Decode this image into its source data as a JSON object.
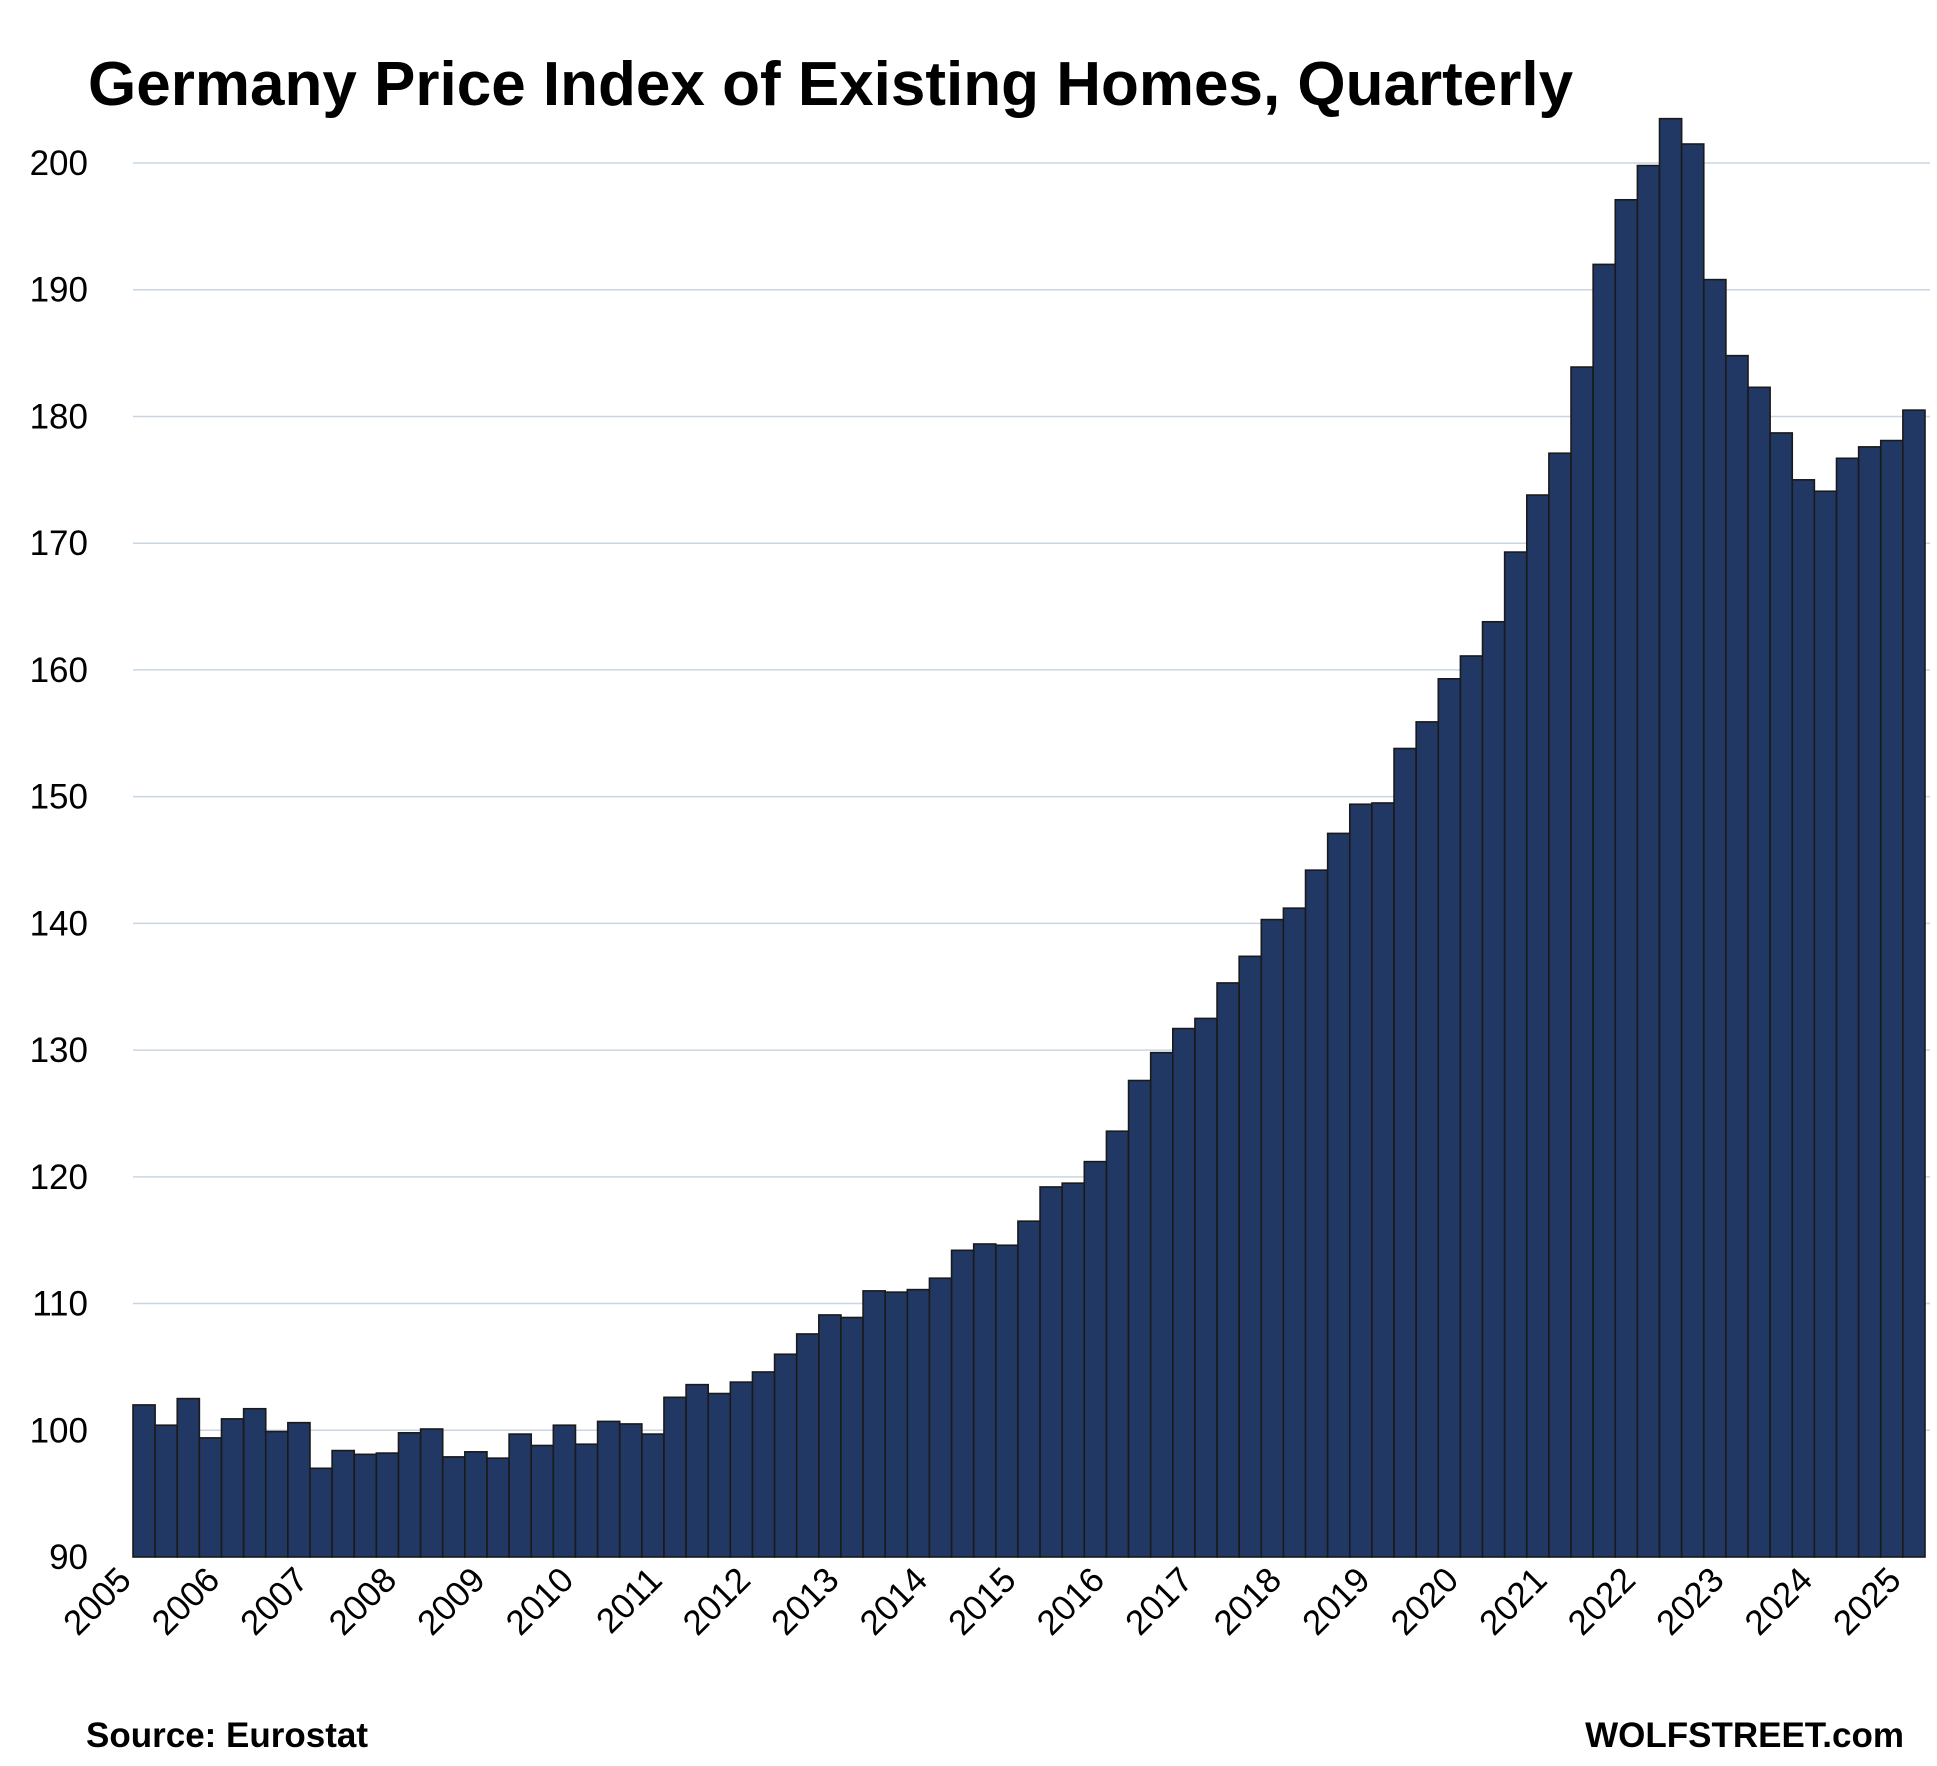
{
  "chart_data": {
    "type": "bar",
    "title": "Germany Price Index of Existing Homes, Quarterly",
    "xlabel": "",
    "ylabel": "",
    "ylim": [
      90,
      203
    ],
    "yticks": [
      "90",
      "100",
      "110",
      "120",
      "130",
      "140",
      "150",
      "160",
      "170",
      "180",
      "190",
      "200"
    ],
    "xticks": [
      "2005",
      "2006",
      "2007",
      "2008",
      "2009",
      "2010",
      "2011",
      "2012",
      "2013",
      "2014",
      "2015",
      "2016",
      "2017",
      "2018",
      "2019",
      "2020",
      "2021",
      "2022",
      "2023",
      "2024",
      "2025"
    ],
    "grid": true,
    "legend": "none",
    "bar_color": "#213864",
    "series": [
      {
        "values": [
          102.0,
          100.4,
          102.5,
          99.4,
          100.9,
          101.7,
          99.9,
          100.6,
          97.0,
          98.4,
          98.1,
          98.2,
          99.8,
          100.1,
          97.9,
          98.3,
          97.8,
          99.7,
          98.8,
          100.4,
          98.9,
          100.7,
          100.5,
          99.7,
          102.6,
          103.6,
          102.9,
          103.8,
          104.6,
          106.0,
          107.6,
          109.1,
          108.9,
          111.0,
          110.9,
          111.1,
          112.0,
          114.2,
          114.7,
          114.6,
          116.5,
          119.2,
          119.5,
          121.2,
          123.6,
          127.6,
          129.8,
          131.7,
          132.5,
          135.3,
          137.4,
          140.3,
          141.2,
          144.2,
          147.1,
          149.4,
          149.5,
          153.8,
          155.9,
          159.3,
          161.1,
          163.8,
          169.3,
          173.8,
          177.1,
          183.9,
          192.0,
          197.1,
          199.8,
          203.5,
          201.5,
          190.8,
          184.8,
          182.3,
          178.7,
          175.0,
          174.1,
          176.7,
          177.6,
          178.1,
          180.5
        ]
      }
    ]
  },
  "footer": {
    "source": "Source: Eurostat",
    "brand": "WOLFSTREET.com"
  }
}
